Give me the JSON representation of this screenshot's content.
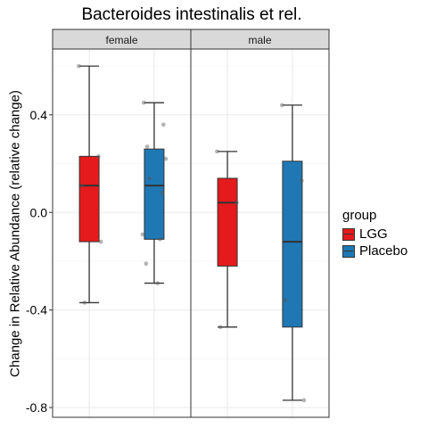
{
  "chart_data": {
    "type": "boxplot",
    "title": "Bacteroides intestinalis et rel.",
    "ylabel": "Change in Relative Abundance (relative change)",
    "xlabel": "",
    "ylim": [
      -0.84,
      0.67
    ],
    "yticks": [
      -0.8,
      -0.4,
      0.0,
      0.4
    ],
    "ytick_labels": [
      "-0.8",
      "-0.4",
      "0.0",
      "0.4"
    ],
    "grid": true,
    "legend": {
      "title": "group",
      "placement": "right",
      "entries": [
        {
          "name": "LGG",
          "color": "#E41A1C"
        },
        {
          "name": "Placebo",
          "color": "#1F78B4"
        }
      ]
    },
    "facets": [
      {
        "label": "female",
        "boxes": [
          {
            "group": "LGG",
            "whisker_low": -0.37,
            "q1": -0.12,
            "median": 0.11,
            "q3": 0.23,
            "whisker_high": 0.6,
            "points": [
              0.6,
              0.23,
              0.11,
              -0.12,
              -0.37
            ]
          },
          {
            "group": "Placebo",
            "whisker_low": -0.29,
            "q1": -0.11,
            "median": 0.11,
            "q3": 0.26,
            "whisker_high": 0.45,
            "points": [
              0.45,
              0.36,
              0.27,
              0.22,
              0.14,
              0.08,
              -0.09,
              -0.11,
              -0.21,
              -0.29
            ]
          }
        ]
      },
      {
        "label": "male",
        "boxes": [
          {
            "group": "LGG",
            "whisker_low": -0.47,
            "q1": -0.22,
            "median": 0.04,
            "q3": 0.14,
            "whisker_high": 0.25,
            "points": [
              0.25,
              0.04,
              -0.47
            ]
          },
          {
            "group": "Placebo",
            "whisker_low": -0.77,
            "q1": -0.47,
            "median": -0.12,
            "q3": 0.21,
            "whisker_high": 0.44,
            "points": [
              0.44,
              0.13,
              -0.36,
              -0.77
            ]
          }
        ]
      }
    ]
  }
}
